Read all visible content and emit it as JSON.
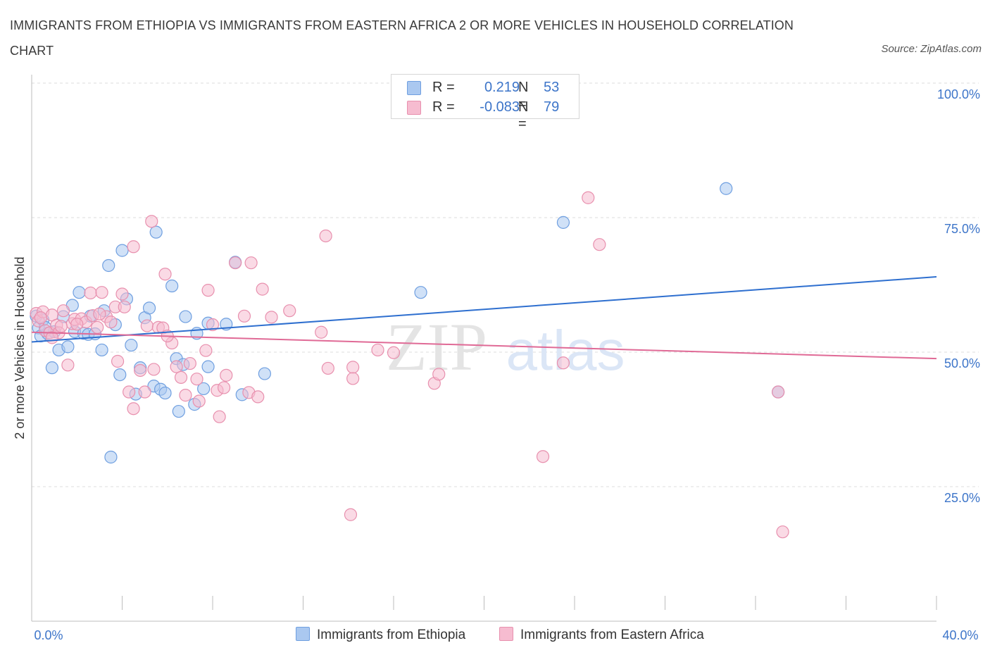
{
  "title": "IMMIGRANTS FROM ETHIOPIA VS IMMIGRANTS FROM EASTERN AFRICA 2 OR MORE VEHICLES IN HOUSEHOLD CORRELATION CHART",
  "source": "Source: ZipAtlas.com",
  "watermark": {
    "part1": "ZIP",
    "part2": "atlas"
  },
  "legend": {
    "r_label": "R =",
    "n_label": "N =",
    "rows": [
      {
        "r": "0.219",
        "n": "53"
      },
      {
        "r": "-0.083",
        "n": "79"
      }
    ]
  },
  "colors": {
    "ethiopia_fill": "#aac8f0",
    "ethiopia_stroke": "#6f9fe0",
    "ethiopia_line": "#2e6fcf",
    "eastern_africa_fill": "#f6bcd0",
    "eastern_africa_stroke": "#e890ae",
    "eastern_africa_line": "#e06a96",
    "axis_label": "#3d75c9",
    "grid": "#dcdcdc"
  },
  "chart_data": {
    "type": "scatter",
    "title": "IMMIGRANTS FROM ETHIOPIA VS IMMIGRANTS FROM EASTERN AFRICA 2 OR MORE VEHICLES IN HOUSEHOLD CORRELATION CHART",
    "xlabel": "",
    "ylabel": "2 or more Vehicles in Household",
    "xlim": [
      0,
      40
    ],
    "ylim": [
      0,
      100
    ],
    "x_tick_labels": [
      "0.0%",
      "40.0%"
    ],
    "y_ticks": [
      25,
      50,
      75,
      100
    ],
    "y_tick_labels": [
      "25.0%",
      "50.0%",
      "75.0%",
      "100.0%"
    ],
    "grid": true,
    "legend_position": "bottom",
    "series": [
      {
        "name": "Immigrants from Ethiopia",
        "trend": {
          "x": [
            0,
            40
          ],
          "y": [
            51.9,
            64.0
          ]
        },
        "points": [
          [
            0.2,
            56.7
          ],
          [
            0.3,
            54.5
          ],
          [
            0.4,
            53.0
          ],
          [
            0.5,
            56.0
          ],
          [
            0.7,
            53.5
          ],
          [
            0.9,
            47.1
          ],
          [
            1.2,
            50.4
          ],
          [
            1.4,
            56.6
          ],
          [
            1.6,
            51.0
          ],
          [
            1.8,
            58.7
          ],
          [
            1.9,
            53.8
          ],
          [
            2.1,
            61.1
          ],
          [
            2.3,
            53.5
          ],
          [
            2.5,
            53.3
          ],
          [
            2.6,
            56.7
          ],
          [
            2.8,
            53.4
          ],
          [
            3.1,
            50.4
          ],
          [
            3.2,
            57.7
          ],
          [
            3.4,
            66.1
          ],
          [
            3.5,
            30.5
          ],
          [
            3.7,
            55.1
          ],
          [
            3.9,
            45.8
          ],
          [
            4.0,
            68.9
          ],
          [
            4.2,
            59.9
          ],
          [
            4.4,
            51.3
          ],
          [
            4.6,
            42.2
          ],
          [
            4.8,
            47.1
          ],
          [
            5.0,
            56.4
          ],
          [
            5.2,
            58.2
          ],
          [
            5.4,
            43.7
          ],
          [
            5.5,
            72.3
          ],
          [
            5.7,
            43.1
          ],
          [
            5.9,
            42.4
          ],
          [
            6.2,
            62.3
          ],
          [
            6.4,
            48.8
          ],
          [
            6.5,
            39.0
          ],
          [
            6.7,
            47.7
          ],
          [
            6.8,
            56.6
          ],
          [
            7.2,
            40.3
          ],
          [
            7.3,
            53.5
          ],
          [
            7.6,
            43.2
          ],
          [
            7.8,
            55.4
          ],
          [
            7.8,
            47.3
          ],
          [
            8.6,
            55.2
          ],
          [
            9.0,
            66.7
          ],
          [
            9.3,
            42.1
          ],
          [
            10.3,
            46.0
          ],
          [
            17.2,
            61.1
          ],
          [
            23.5,
            74.1
          ],
          [
            30.7,
            80.4
          ],
          [
            33.0,
            42.6
          ],
          [
            0.6,
            54.6
          ],
          [
            1.0,
            53.8
          ]
        ]
      },
      {
        "name": "Immigrants from Eastern Africa",
        "trend": {
          "x": [
            0,
            40
          ],
          "y": [
            53.7,
            48.8
          ]
        },
        "points": [
          [
            0.2,
            57.2
          ],
          [
            0.3,
            55.8
          ],
          [
            0.5,
            57.5
          ],
          [
            0.6,
            54.0
          ],
          [
            0.8,
            53.6
          ],
          [
            0.9,
            56.9
          ],
          [
            1.1,
            55.0
          ],
          [
            1.2,
            53.6
          ],
          [
            1.4,
            57.7
          ],
          [
            1.6,
            47.6
          ],
          [
            1.8,
            55.3
          ],
          [
            1.9,
            56.1
          ],
          [
            2.2,
            56.2
          ],
          [
            2.4,
            55.6
          ],
          [
            2.6,
            61.0
          ],
          [
            2.7,
            56.8
          ],
          [
            2.9,
            54.6
          ],
          [
            3.1,
            61.1
          ],
          [
            3.3,
            56.6
          ],
          [
            3.5,
            55.6
          ],
          [
            3.7,
            58.4
          ],
          [
            3.8,
            48.3
          ],
          [
            4.0,
            60.8
          ],
          [
            4.1,
            58.4
          ],
          [
            4.3,
            42.6
          ],
          [
            4.5,
            69.6
          ],
          [
            4.5,
            39.5
          ],
          [
            4.8,
            46.6
          ],
          [
            5.0,
            42.6
          ],
          [
            5.1,
            54.9
          ],
          [
            5.3,
            74.3
          ],
          [
            5.4,
            46.8
          ],
          [
            5.6,
            54.6
          ],
          [
            5.8,
            54.5
          ],
          [
            5.9,
            64.5
          ],
          [
            6.2,
            51.7
          ],
          [
            6.4,
            47.3
          ],
          [
            6.6,
            45.3
          ],
          [
            6.8,
            42.0
          ],
          [
            7.0,
            47.9
          ],
          [
            7.3,
            45.0
          ],
          [
            7.4,
            40.9
          ],
          [
            7.7,
            50.3
          ],
          [
            7.8,
            61.5
          ],
          [
            8.0,
            55.1
          ],
          [
            8.2,
            42.9
          ],
          [
            8.3,
            38.0
          ],
          [
            8.5,
            43.4
          ],
          [
            8.6,
            45.7
          ],
          [
            9.0,
            66.6
          ],
          [
            9.4,
            56.7
          ],
          [
            9.6,
            42.5
          ],
          [
            9.7,
            66.6
          ],
          [
            10.0,
            41.7
          ],
          [
            10.2,
            61.7
          ],
          [
            10.6,
            56.5
          ],
          [
            11.4,
            57.7
          ],
          [
            12.8,
            53.7
          ],
          [
            13.0,
            71.6
          ],
          [
            13.1,
            47.0
          ],
          [
            14.1,
            19.8
          ],
          [
            14.2,
            47.2
          ],
          [
            14.2,
            45.1
          ],
          [
            15.3,
            50.4
          ],
          [
            16.0,
            49.9
          ],
          [
            17.8,
            44.2
          ],
          [
            18.0,
            45.9
          ],
          [
            22.6,
            30.6
          ],
          [
            23.5,
            48.0
          ],
          [
            24.6,
            78.7
          ],
          [
            25.1,
            70.0
          ],
          [
            33.0,
            42.6
          ],
          [
            33.2,
            16.6
          ],
          [
            0.4,
            56.4
          ],
          [
            1.3,
            54.8
          ],
          [
            2.0,
            55.2
          ],
          [
            3.0,
            57.1
          ],
          [
            6.0,
            53.0
          ],
          [
            0.9,
            52.7
          ]
        ]
      }
    ]
  }
}
